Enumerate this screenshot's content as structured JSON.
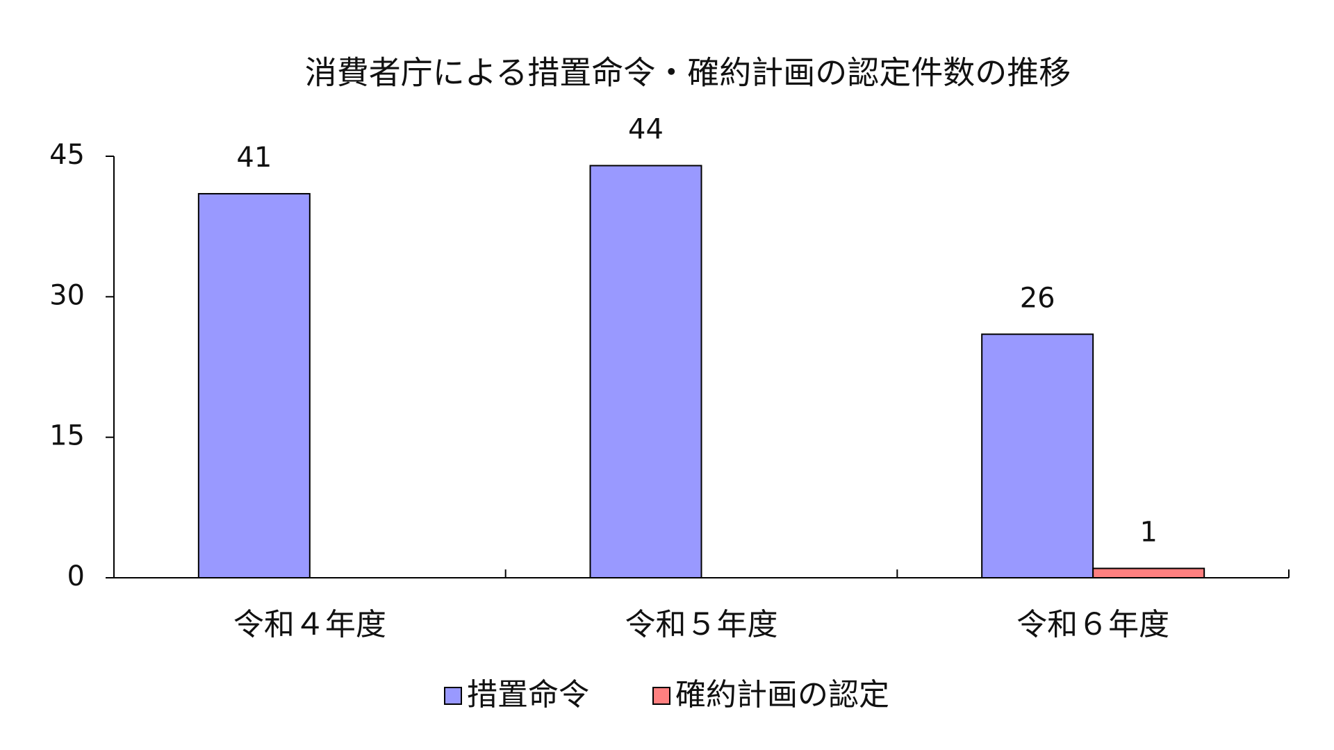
{
  "chart_data": {
    "type": "bar",
    "title": "消費者庁による措置命令・確約計画の認定件数の推移",
    "categories": [
      "令和４年度",
      "令和５年度",
      "令和６年度"
    ],
    "series": [
      {
        "name": "措置命令",
        "color": "#9999ff",
        "values": [
          41,
          44,
          26
        ]
      },
      {
        "name": "確約計画の認定",
        "color": "#ff8080",
        "values": [
          null,
          null,
          1
        ]
      }
    ],
    "ylim": [
      0,
      45
    ],
    "yticks": [
      0,
      15,
      30,
      45
    ],
    "grid": false,
    "legend": "bottom"
  }
}
